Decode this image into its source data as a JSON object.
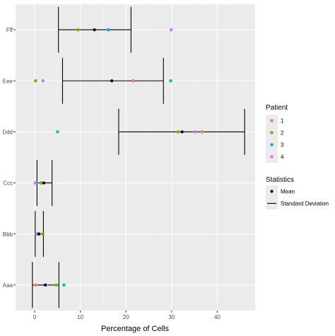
{
  "chart_data": {
    "type": "scatter",
    "xlabel": "Percentage of Cells",
    "ylabel": "",
    "xlim": [
      -4.2,
      48.3
    ],
    "x_ticks": [
      "0",
      "10",
      "20",
      "30",
      "40"
    ],
    "categories": [
      "Aaa",
      "Bbb",
      "Ccc",
      "Ddd",
      "Eee",
      "Fff"
    ],
    "grid": true,
    "legend_placement": "right",
    "patient_legend": {
      "title": "Patient",
      "entries": [
        {
          "label": "1",
          "color": "#F8766D"
        },
        {
          "label": "2",
          "color": "#7CAE00"
        },
        {
          "label": "3",
          "color": "#00BFC4"
        },
        {
          "label": "4",
          "color": "#C77CFF"
        }
      ]
    },
    "stats_legend": {
      "title": "Statistics",
      "entries": [
        {
          "label": "Mean",
          "kind": "point"
        },
        {
          "label": "Standard Deviation",
          "kind": "line"
        }
      ]
    },
    "series": [
      {
        "name": "1",
        "color": "#F8766D",
        "values": [
          0.2,
          1.0,
          1.5,
          36.7,
          21.6,
          16.1
        ]
      },
      {
        "name": "2",
        "color": "#7CAE00",
        "values": [
          4.7,
          1.8,
          1.4,
          31.4,
          0.2,
          9.5
        ]
      },
      {
        "name": "3",
        "color": "#00BFC4",
        "values": [
          6.4,
          0.4,
          0.4,
          5.0,
          29.8,
          16.2
        ]
      },
      {
        "name": "4",
        "color": "#C77CFF",
        "values": [
          2.5,
          0.6,
          0.1,
          35.1,
          1.8,
          29.9
        ]
      }
    ],
    "mean": [
      2.3,
      0.9,
      2.0,
      32.3,
      16.9,
      13.1
    ],
    "sd_range": [
      [
        -0.5,
        5.3
      ],
      [
        0.1,
        1.9
      ],
      [
        0.5,
        3.8
      ],
      [
        18.4,
        46.0
      ],
      [
        6.1,
        28.2
      ],
      [
        5.2,
        21.1
      ]
    ]
  }
}
